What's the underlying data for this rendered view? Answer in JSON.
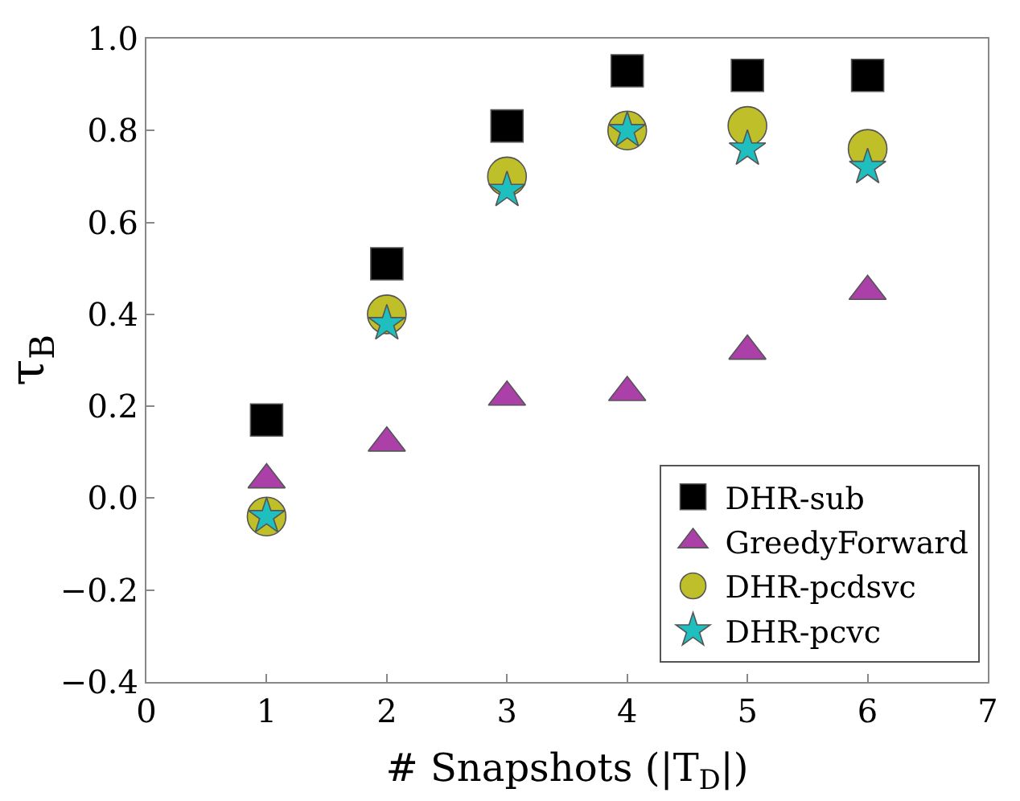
{
  "chart_data": {
    "type": "scatter",
    "xlabel": "# Snapshots (|T$_{D}$|)",
    "ylabel": "τ$_{B}$",
    "x": [
      1,
      2,
      3,
      4,
      5,
      6
    ],
    "series": [
      {
        "name": "DHR-sub",
        "color": "#000000",
        "marker": "square",
        "values": [
          0.17,
          0.51,
          0.81,
          0.93,
          0.92,
          0.92
        ]
      },
      {
        "name": "GreedyForward",
        "color": "#aa40a8",
        "marker": "triangle",
        "values": [
          0.04,
          0.12,
          0.22,
          0.23,
          0.32,
          0.45
        ]
      },
      {
        "name": "DHR-pcdsvc",
        "color": "#bfbf2a",
        "marker": "circle",
        "values": [
          -0.04,
          0.4,
          0.7,
          0.8,
          0.81,
          0.76
        ]
      },
      {
        "name": "DHR-pcvc",
        "color": "#20bfbf",
        "marker": "star",
        "values": [
          -0.04,
          0.38,
          0.67,
          0.8,
          0.76,
          0.72
        ]
      }
    ],
    "xlim": [
      0,
      7
    ],
    "xticks": [
      0,
      1,
      2,
      3,
      4,
      5,
      6,
      7
    ],
    "ylim": [
      -0.4,
      1.0
    ],
    "yticks": [
      {
        "value": -0.4,
        "label": "−0.4"
      },
      {
        "value": -0.2,
        "label": "−0.2"
      },
      {
        "value": 0,
        "label": "0.0"
      },
      0.2,
      0.4,
      0.6,
      0.8,
      {
        "value": 1,
        "label": "1.0"
      }
    ],
    "legend": "bottom right"
  }
}
